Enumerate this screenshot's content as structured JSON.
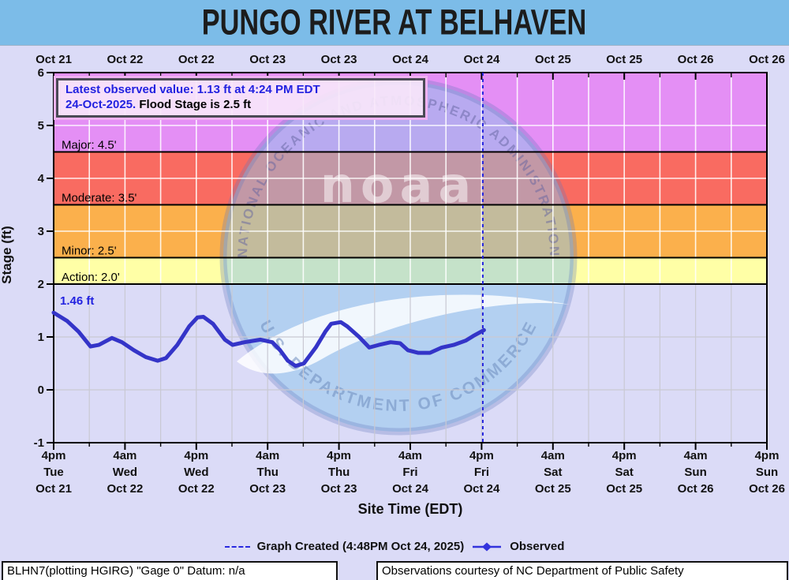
{
  "title": "PUNGO RIVER AT BELHAVEN",
  "info_box": {
    "line1": "Latest observed value: 1.13 ft at 4:24 PM EDT",
    "line2_blue": "24-Oct-2025.",
    "line2_black": " Flood Stage is 2.5 ft"
  },
  "start_label": "1.46 ft",
  "axis": {
    "y_title": "Stage (ft)",
    "x_title": "Site Time (EDT)",
    "y_ticks": [
      -1,
      0,
      1,
      2,
      3,
      4,
      5,
      6
    ],
    "top_labels": [
      "Oct 21",
      "Oct 22",
      "Oct 22",
      "Oct 23",
      "Oct 23",
      "Oct 24",
      "Oct 24",
      "Oct 25",
      "Oct 25",
      "Oct 26",
      "Oct 26"
    ],
    "bottom_labels": [
      [
        "4pm",
        "Tue",
        "Oct 21"
      ],
      [
        "4am",
        "Wed",
        "Oct 22"
      ],
      [
        "4pm",
        "Wed",
        "Oct 22"
      ],
      [
        "4am",
        "Thu",
        "Oct 23"
      ],
      [
        "4pm",
        "Thu",
        "Oct 23"
      ],
      [
        "4am",
        "Fri",
        "Oct 24"
      ],
      [
        "4pm",
        "Fri",
        "Oct 24"
      ],
      [
        "4am",
        "Sat",
        "Oct 25"
      ],
      [
        "4pm",
        "Sat",
        "Oct 25"
      ],
      [
        "4am",
        "Sun",
        "Oct 26"
      ],
      [
        "4pm",
        "Sun",
        "Oct 26"
      ]
    ]
  },
  "legend": {
    "created_label": "Graph Created (4:48PM Oct 24, 2025)",
    "observed_label": "Observed"
  },
  "footer": {
    "left": "BLHN7(plotting HGIRG) \"Gage 0\" Datum: n/a",
    "right": "Observations courtesy of NC Department of Public Safety"
  },
  "watermark": {
    "top_text": "NATIONAL OCEANIC AND ATMOSPHERIC ADMINISTRATION",
    "center_text": "noaa",
    "bottom_text": "U.S. DEPARTMENT OF COMMERCE"
  },
  "colors": {
    "title_bar": "#7cbce8",
    "page_bg": "#dbdbf7",
    "observed_line": "#3434c8",
    "created_line": "#2222dd",
    "label_blue": "#2222e0",
    "grid_white": "rgba(255,255,255,0.88)",
    "grid_gray": "#c9c9d3"
  },
  "chart_data": {
    "type": "line",
    "title": "PUNGO RIVER AT BELHAVEN",
    "xlabel": "Site Time (EDT)",
    "ylabel": "Stage (ft)",
    "ylim": [
      -1,
      6
    ],
    "x_hours_range": [
      0,
      120
    ],
    "x_start": "4pm Tue Oct 21",
    "x_end": "4pm Sun Oct 26",
    "tick_interval_hours": 12,
    "minor_tick_hours": 6,
    "grid": true,
    "latest_observed": {
      "value_ft": 1.13,
      "time": "4:24 PM EDT",
      "date": "24-Oct-2025"
    },
    "flood_stage_ft": 2.5,
    "start_value_ft": 1.46,
    "graph_created": "4:48PM Oct 24, 2025",
    "graph_created_hour": 72.2,
    "flood_categories": [
      {
        "name": "Major",
        "label": "Major: 4.5'",
        "from": 4.5,
        "to": 6.0,
        "color": "#e48ff5"
      },
      {
        "name": "Moderate",
        "label": "Moderate: 3.5'",
        "from": 3.5,
        "to": 4.5,
        "color": "#f96b61"
      },
      {
        "name": "Minor",
        "label": "Minor: 2.5'",
        "from": 2.5,
        "to": 3.5,
        "color": "#fbb04c"
      },
      {
        "name": "Action",
        "label": "Action: 2.0'",
        "from": 2.0,
        "to": 2.5,
        "color": "#ffffa6"
      }
    ],
    "series": [
      {
        "name": "Observed",
        "hours": [
          0,
          2.3,
          4.2,
          6.2,
          7.6,
          9.8,
          11.5,
          13.5,
          15.5,
          17.5,
          18.9,
          20.8,
          22.8,
          24.2,
          25.2,
          26.8,
          28.8,
          30.1,
          32.1,
          34.8,
          36.8,
          38.1,
          39.4,
          40.7,
          42.1,
          44.1,
          45.7,
          46.7,
          48.3,
          49.4,
          51.4,
          53.1,
          54.7,
          56.7,
          58.3,
          59.6,
          61.3,
          63.3,
          65.3,
          67.3,
          69.3,
          70.6,
          72.4
        ],
        "stage_ft": [
          1.46,
          1.3,
          1.1,
          0.82,
          0.85,
          0.98,
          0.9,
          0.75,
          0.62,
          0.55,
          0.6,
          0.85,
          1.2,
          1.37,
          1.38,
          1.25,
          0.95,
          0.85,
          0.9,
          0.95,
          0.9,
          0.75,
          0.55,
          0.45,
          0.5,
          0.8,
          1.1,
          1.25,
          1.28,
          1.2,
          1.0,
          0.8,
          0.85,
          0.9,
          0.88,
          0.75,
          0.7,
          0.7,
          0.8,
          0.85,
          0.93,
          1.02,
          1.13
        ]
      }
    ]
  }
}
